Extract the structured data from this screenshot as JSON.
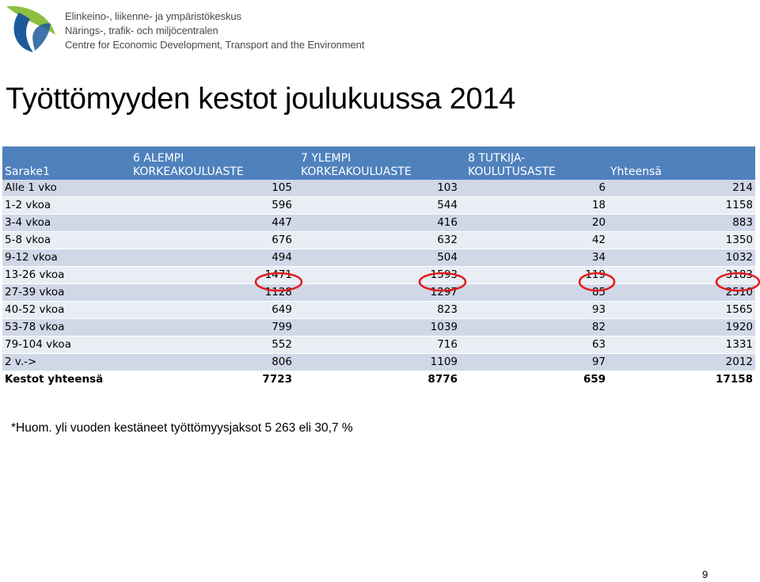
{
  "header": {
    "org_lines": [
      "Elinkeino-, liikenne- ja ympäristökeskus",
      "Närings-, trafik- och miljöcentralen",
      "Centre for Economic Development, Transport and the Environment"
    ],
    "logo_icon": "ely-leaf-logo-icon",
    "colors": {
      "leaf_green": "#8cbf3f",
      "leaf_blue": "#1d5a9a"
    }
  },
  "title": "Työttömyyden kestot joulukuussa 2014",
  "table": {
    "header_color": "#4f81bd",
    "columns": [
      {
        "line1": "",
        "line2": "Sarake1"
      },
      {
        "line1": "6 ALEMPI",
        "line2": "KORKEAKOULUASTE"
      },
      {
        "line1": "7 YLEMPI",
        "line2": "KORKEAKOULUASTE"
      },
      {
        "line1": "8 TUTKIJA-",
        "line2": "KOULUTUSASTE"
      },
      {
        "line1": "",
        "line2": "Yhteensä"
      }
    ],
    "rows": [
      {
        "label": "Alle 1 vko",
        "c6": "105",
        "c7": "103",
        "c8": "6",
        "total": "214"
      },
      {
        "label": "1-2 vkoa",
        "c6": "596",
        "c7": "544",
        "c8": "18",
        "total": "1158"
      },
      {
        "label": "3-4 vkoa",
        "c6": "447",
        "c7": "416",
        "c8": "20",
        "total": "883"
      },
      {
        "label": "5-8 vkoa",
        "c6": "676",
        "c7": "632",
        "c8": "42",
        "total": "1350"
      },
      {
        "label": "9-12 vkoa",
        "c6": "494",
        "c7": "504",
        "c8": "34",
        "total": "1032"
      },
      {
        "label": "13-26 vkoa",
        "c6": "1471",
        "c7": "1593",
        "c8": "119",
        "total": "3183"
      },
      {
        "label": "27-39 vkoa",
        "c6": "1128",
        "c7": "1297",
        "c8": "85",
        "total": "2510"
      },
      {
        "label": "40-52 vkoa",
        "c6": "649",
        "c7": "823",
        "c8": "93",
        "total": "1565"
      },
      {
        "label": "53-78 vkoa",
        "c6": "799",
        "c7": "1039",
        "c8": "82",
        "total": "1920"
      },
      {
        "label": "79-104 vkoa",
        "c6": "552",
        "c7": "716",
        "c8": "63",
        "total": "1331"
      },
      {
        "label": "2 v.->",
        "c6": "806",
        "c7": "1109",
        "c8": "97",
        "total": "2012"
      }
    ],
    "total_row": {
      "label": "Kestot yhteensä",
      "c6": "7723",
      "c7": "8776",
      "c8": "659",
      "total": "17158"
    },
    "highlight_color": "#e21b1b"
  },
  "note": "*Huom. yli vuoden kestäneet työttömyysjaksot 5 263 eli 30,7 %",
  "page_number": "9"
}
